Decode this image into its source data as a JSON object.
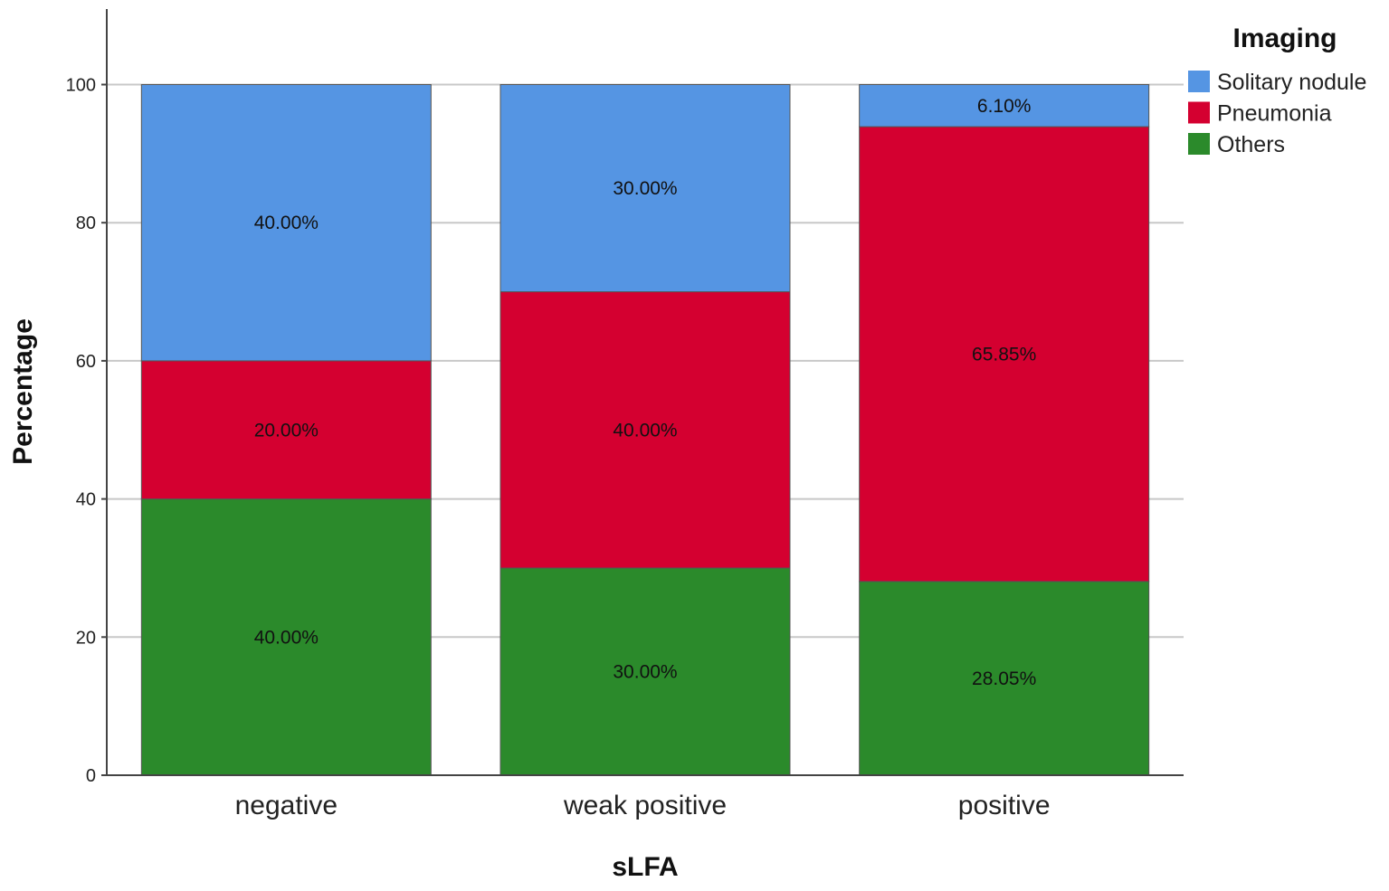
{
  "chart_data": {
    "type": "bar",
    "stacked": true,
    "categories": [
      "negative",
      "weak positive",
      "positive"
    ],
    "series": [
      {
        "name": "Others",
        "color": "#2B8A2B",
        "values": [
          40.0,
          30.0,
          28.05
        ],
        "labels": [
          "40.00%",
          "30.00%",
          "28.05%"
        ]
      },
      {
        "name": "Pneumonia",
        "color": "#D40030",
        "values": [
          20.0,
          40.0,
          65.85
        ],
        "labels": [
          "20.00%",
          "40.00%",
          "65.85%"
        ]
      },
      {
        "name": "Solitary nodule",
        "color": "#5595E3",
        "values": [
          40.0,
          30.0,
          6.1
        ],
        "labels": [
          "40.00%",
          "30.00%",
          "6.10%"
        ]
      }
    ],
    "title": "",
    "xlabel": "sLFA",
    "ylabel": "Percentage",
    "ylim": [
      0,
      110
    ],
    "yticks": [
      0,
      20,
      40,
      60,
      80,
      100
    ],
    "grid": true,
    "legend": {
      "title": "Imaging",
      "placement": "top-right",
      "order": [
        "Solitary nodule",
        "Pneumonia",
        "Others"
      ]
    }
  }
}
